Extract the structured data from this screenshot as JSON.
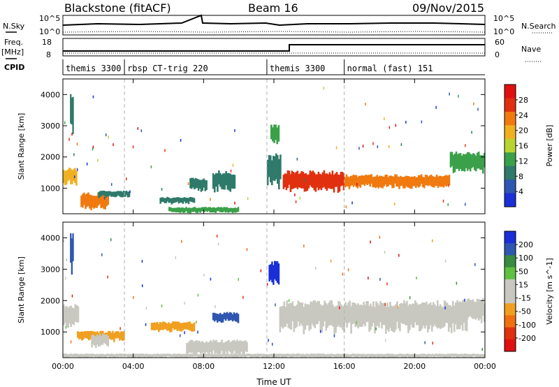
{
  "header": {
    "station": "Blackstone (fitACF)",
    "beam": "Beam 16",
    "date": "09/Nov/2015"
  },
  "nsky_panel": {
    "left_label": "N.Sky",
    "right_label": "N.Search",
    "left_ticks": [
      "10^5",
      "10^0"
    ],
    "right_ticks": [
      "10^5",
      "10^0"
    ]
  },
  "freq_panel": {
    "left_label": "Freq.",
    "left_unit": "[MHz]",
    "right_label": "Nave",
    "left_ticks": [
      "18",
      "8"
    ],
    "right_ticks": [
      "60",
      "0"
    ]
  },
  "cpid_panel": {
    "label": "CPID",
    "modes": [
      {
        "label": "themis 3300",
        "start_hour": 0
      },
      {
        "label": "rbsp CT-trig 220",
        "start_hour": 3.5
      },
      {
        "label": "themis 3300",
        "start_hour": 11.6
      },
      {
        "label": "normal (fast) 151",
        "start_hour": 16
      }
    ]
  },
  "colors": {
    "power_scale": [
      "#1a2fd8",
      "#2f56b0",
      "#2f7a6a",
      "#3aa04a",
      "#b8d430",
      "#f0b020",
      "#f07a10",
      "#e03010",
      "#e01010"
    ],
    "velocity_scale": [
      "#1a2fd8",
      "#2f56b0",
      "#3a8a40",
      "#60c040",
      "#c8c8c0",
      "#c8c8c0",
      "#f0a020",
      "#f07010",
      "#e03010",
      "#e01010"
    ]
  },
  "chart_data": [
    {
      "type": "heatmap",
      "name": "power",
      "xlabel": "",
      "ylabel": "Slant Range [km]",
      "xlim": [
        0,
        24
      ],
      "ylim": [
        180,
        4500
      ],
      "x_ticks": [],
      "y_ticks": [
        "1000",
        "2000",
        "3000",
        "4000"
      ],
      "colorbar": {
        "label": "Power [dB]",
        "ticks": [
          "4",
          "8",
          "12",
          "16",
          "20",
          "24",
          "28"
        ],
        "range": [
          0,
          32
        ]
      },
      "bands": [
        {
          "t": [
            0.0,
            0.8
          ],
          "range": [
            1100,
            1600
          ],
          "level": 20
        },
        {
          "t": [
            0.4,
            0.6
          ],
          "range": [
            2800,
            4000
          ],
          "level": 10
        },
        {
          "t": [
            1.0,
            2.6
          ],
          "range": [
            300,
            800
          ],
          "level": 24
        },
        {
          "t": [
            2.0,
            3.8
          ],
          "range": [
            700,
            900
          ],
          "level": 8
        },
        {
          "t": [
            5.5,
            7.5
          ],
          "range": [
            500,
            700
          ],
          "level": 10
        },
        {
          "t": [
            6.0,
            10.0
          ],
          "range": [
            200,
            380
          ],
          "level": 12
        },
        {
          "t": [
            7.2,
            8.2
          ],
          "range": [
            900,
            1300
          ],
          "level": 8
        },
        {
          "t": [
            8.5,
            9.8
          ],
          "range": [
            900,
            1500
          ],
          "level": 8
        },
        {
          "t": [
            11.6,
            12.4
          ],
          "range": [
            1000,
            2000
          ],
          "level": 10
        },
        {
          "t": [
            11.8,
            12.3
          ],
          "range": [
            2400,
            3000
          ],
          "level": 14
        },
        {
          "t": [
            12.5,
            16.0
          ],
          "range": [
            900,
            1500
          ],
          "level": 26
        },
        {
          "t": [
            16.0,
            22.0
          ],
          "range": [
            1000,
            1400
          ],
          "level": 24
        },
        {
          "t": [
            22.0,
            24.0
          ],
          "range": [
            1500,
            2100
          ],
          "level": 14
        }
      ]
    },
    {
      "type": "heatmap",
      "name": "velocity",
      "xlabel": "Time UT",
      "ylabel": "Slant Range [km]",
      "xlim": [
        0,
        24
      ],
      "ylim": [
        180,
        4500
      ],
      "x_ticks": [
        "00:00",
        "04:00",
        "08:00",
        "12:00",
        "16:00",
        "20:00",
        "00:00"
      ],
      "y_ticks": [
        "1000",
        "2000",
        "3000",
        "4000"
      ],
      "colorbar": {
        "label": "Velocity [m s^-1]",
        "ticks": [
          "200",
          "100",
          "50",
          "15",
          "-15",
          "-50",
          "-100",
          "-200"
        ],
        "range": [
          -250,
          250
        ]
      },
      "bands": [
        {
          "t": [
            0.0,
            0.9
          ],
          "range": [
            1100,
            1800
          ],
          "level": 0
        },
        {
          "t": [
            0.4,
            0.6
          ],
          "range": [
            2800,
            4000
          ],
          "level": 150
        },
        {
          "t": [
            0.8,
            3.5
          ],
          "range": [
            700,
            1000
          ],
          "level": -60
        },
        {
          "t": [
            1.6,
            2.6
          ],
          "range": [
            500,
            900
          ],
          "level": 0
        },
        {
          "t": [
            5.0,
            7.5
          ],
          "range": [
            1000,
            1300
          ],
          "level": -80
        },
        {
          "t": [
            7.0,
            10.5
          ],
          "range": [
            250,
            700
          ],
          "level": 40
        },
        {
          "t": [
            8.5,
            10.0
          ],
          "range": [
            1300,
            1600
          ],
          "level": 180
        },
        {
          "t": [
            11.7,
            12.3
          ],
          "range": [
            2500,
            3200
          ],
          "level": 200
        },
        {
          "t": [
            12.3,
            23.0
          ],
          "range": [
            1000,
            1900
          ],
          "level": 0
        },
        {
          "t": [
            22.3,
            24.0
          ],
          "range": [
            1300,
            2000
          ],
          "level": -40
        },
        {
          "t": [
            0.0,
            24.0
          ],
          "range": [
            180,
            300
          ],
          "level": -50
        }
      ]
    }
  ]
}
